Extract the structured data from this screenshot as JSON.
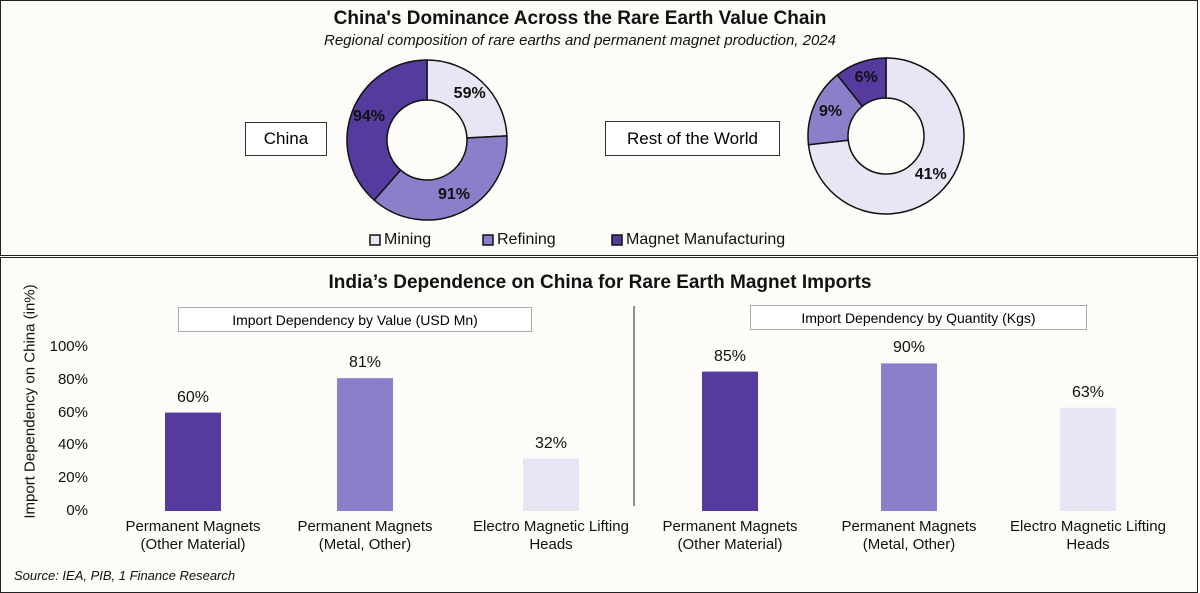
{
  "colors": {
    "mining": "#e8e6f5",
    "refining": "#8b7fc9",
    "magnet": "#553b9e"
  },
  "chart_data": [
    {
      "type": "pie",
      "title": "China's Dominance Across the Rare Earth Value Chain",
      "subtitle": "Regional composition of rare earths and permanent magnet production, 2024",
      "legend": [
        "Mining",
        "Refining",
        "Magnet Manufacturing"
      ],
      "donuts": [
        {
          "label": "China",
          "values": [
            59,
            91,
            94
          ],
          "labels": [
            "59%",
            "91%",
            "94%"
          ]
        },
        {
          "label": "Rest of the World",
          "values": [
            41,
            9,
            6
          ],
          "labels": [
            "41%",
            "9%",
            "6%"
          ]
        }
      ]
    },
    {
      "type": "bar",
      "title": "India’s Dependence on China for Rare Earth Magnet Imports",
      "ylabel": "Import Dependency on China (in%)",
      "ylim": [
        0,
        100
      ],
      "yticks": [
        "0%",
        "20%",
        "40%",
        "60%",
        "80%",
        "100%"
      ],
      "panels": [
        {
          "label": "Import Dependency by Value (USD Mn)",
          "categories": [
            "Permanent Magnets (Other Material)",
            "Permanent Magnets (Metal, Other)",
            "Electro Magnetic Lifting Heads"
          ],
          "values": [
            60,
            81,
            32
          ],
          "labels": [
            "60%",
            "81%",
            "32%"
          ]
        },
        {
          "label": "Import Dependency by Quantity (Kgs)",
          "categories": [
            "Permanent Magnets (Other Material)",
            "Permanent Magnets (Metal, Other)",
            "Electro Magnetic Lifting Heads"
          ],
          "values": [
            85,
            90,
            63
          ],
          "labels": [
            "85%",
            "90%",
            "63%"
          ]
        }
      ]
    }
  ],
  "source": "Source: IEA, PIB, 1 Finance Research"
}
